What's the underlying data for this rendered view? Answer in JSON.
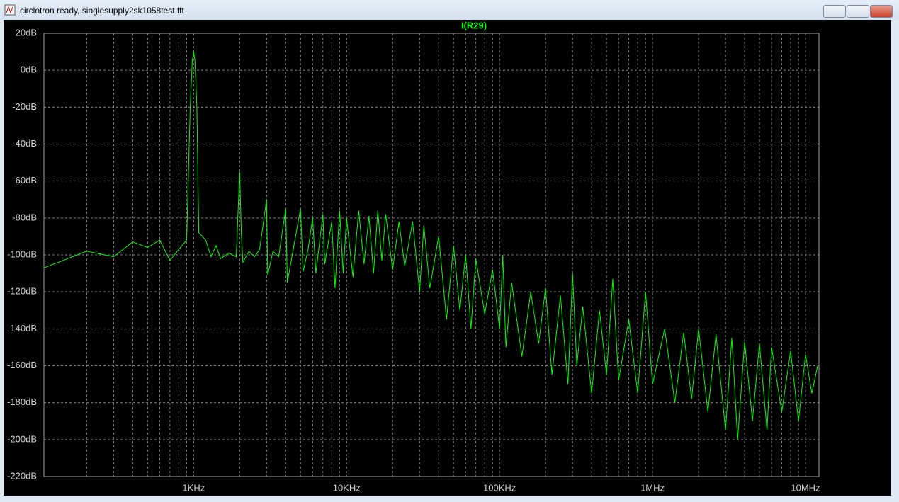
{
  "window": {
    "title": "circlotron ready, singlesupply2sk1058test.fft"
  },
  "chart_data": {
    "type": "line",
    "log_x": true,
    "grid": true,
    "background": "#000000",
    "xlim": [
      105,
      12250000
    ],
    "xticks": [
      {
        "value": 1000,
        "label": "1KHz"
      },
      {
        "value": 10000,
        "label": "10KHz"
      },
      {
        "value": 100000,
        "label": "100KHz"
      },
      {
        "value": 1000000,
        "label": "1MHz"
      },
      {
        "value": 10000000,
        "label": "10MHz"
      }
    ],
    "xminorticks": [
      200,
      300,
      400,
      500,
      600,
      700,
      800,
      900,
      2000,
      3000,
      4000,
      5000,
      6000,
      7000,
      8000,
      9000,
      20000,
      30000,
      40000,
      50000,
      60000,
      70000,
      80000,
      90000,
      200000,
      300000,
      400000,
      500000,
      600000,
      700000,
      800000,
      900000,
      2000000,
      3000000,
      4000000,
      5000000,
      6000000,
      7000000,
      8000000,
      9000000
    ],
    "ylim": [
      -220,
      20
    ],
    "yticks": [
      {
        "value": 20,
        "label": "20dB"
      },
      {
        "value": 0,
        "label": "0dB"
      },
      {
        "value": -20,
        "label": "-20dB"
      },
      {
        "value": -40,
        "label": "-40dB"
      },
      {
        "value": -60,
        "label": "-60dB"
      },
      {
        "value": -80,
        "label": "-80dB"
      },
      {
        "value": -100,
        "label": "-100dB"
      },
      {
        "value": -120,
        "label": "-120dB"
      },
      {
        "value": -140,
        "label": "-140dB"
      },
      {
        "value": -160,
        "label": "-160dB"
      },
      {
        "value": -180,
        "label": "-180dB"
      },
      {
        "value": -200,
        "label": "-200dB"
      },
      {
        "value": -220,
        "label": "-220dB"
      }
    ],
    "series": [
      {
        "name": "I(R29)",
        "color": "#00ff00",
        "x": [
          105,
          200,
          300,
          400,
          500,
          600,
          700,
          800,
          900,
          950,
          980,
          1000,
          1020,
          1050,
          1080,
          1200,
          1300,
          1400,
          1500,
          1700,
          1900,
          2000,
          2050,
          2100,
          2300,
          2500,
          2700,
          3000,
          3050,
          3300,
          3600,
          4000,
          4100,
          4500,
          5000,
          5200,
          5600,
          6000,
          6300,
          7000,
          7200,
          8000,
          8400,
          9000,
          9500,
          10000,
          11000,
          12000,
          13000,
          14000,
          15000,
          16000,
          17000,
          18000,
          20000,
          22000,
          24000,
          27000,
          30000,
          32000,
          35000,
          40000,
          45000,
          50000,
          55000,
          60000,
          65000,
          70000,
          80000,
          90000,
          100000,
          105000,
          110000,
          120000,
          140000,
          160000,
          180000,
          200000,
          220000,
          250000,
          280000,
          300000,
          320000,
          350000,
          400000,
          450000,
          500000,
          550000,
          600000,
          700000,
          800000,
          900000,
          1000000,
          1200000,
          1400000,
          1600000,
          1800000,
          2000000,
          2300000,
          2600000,
          3000000,
          3300000,
          3600000,
          4000000,
          4500000,
          5000000,
          5600000,
          6000000,
          7000000,
          8000000,
          9000000,
          10000000,
          11000000,
          12000000
        ],
        "values": [
          -107,
          -98,
          -101,
          -93,
          -96,
          -92,
          -103,
          -97,
          -92,
          -20,
          5,
          10,
          5,
          -20,
          -88,
          -92,
          -101,
          -95,
          -102,
          -99,
          -101,
          -55,
          -88,
          -104,
          -98,
          -101,
          -97,
          -70,
          -111,
          -98,
          -101,
          -75,
          -115,
          -96,
          -75,
          -109,
          -97,
          -80,
          -110,
          -78,
          -105,
          -82,
          -118,
          -76,
          -110,
          -80,
          -112,
          -76,
          -105,
          -79,
          -110,
          -76,
          -103,
          -78,
          -108,
          -82,
          -106,
          -82,
          -120,
          -84,
          -118,
          -90,
          -135,
          -95,
          -130,
          -100,
          -140,
          -102,
          -132,
          -108,
          -140,
          -100,
          -150,
          -115,
          -155,
          -120,
          -148,
          -118,
          -165,
          -122,
          -170,
          -110,
          -160,
          -128,
          -175,
          -130,
          -165,
          -113,
          -168,
          -135,
          -175,
          -120,
          -170,
          -140,
          -180,
          -142,
          -178,
          -140,
          -185,
          -143,
          -195,
          -145,
          -200,
          -147,
          -190,
          -148,
          -195,
          -150,
          -185,
          -152,
          -190,
          -154,
          -175,
          -160
        ]
      }
    ]
  }
}
